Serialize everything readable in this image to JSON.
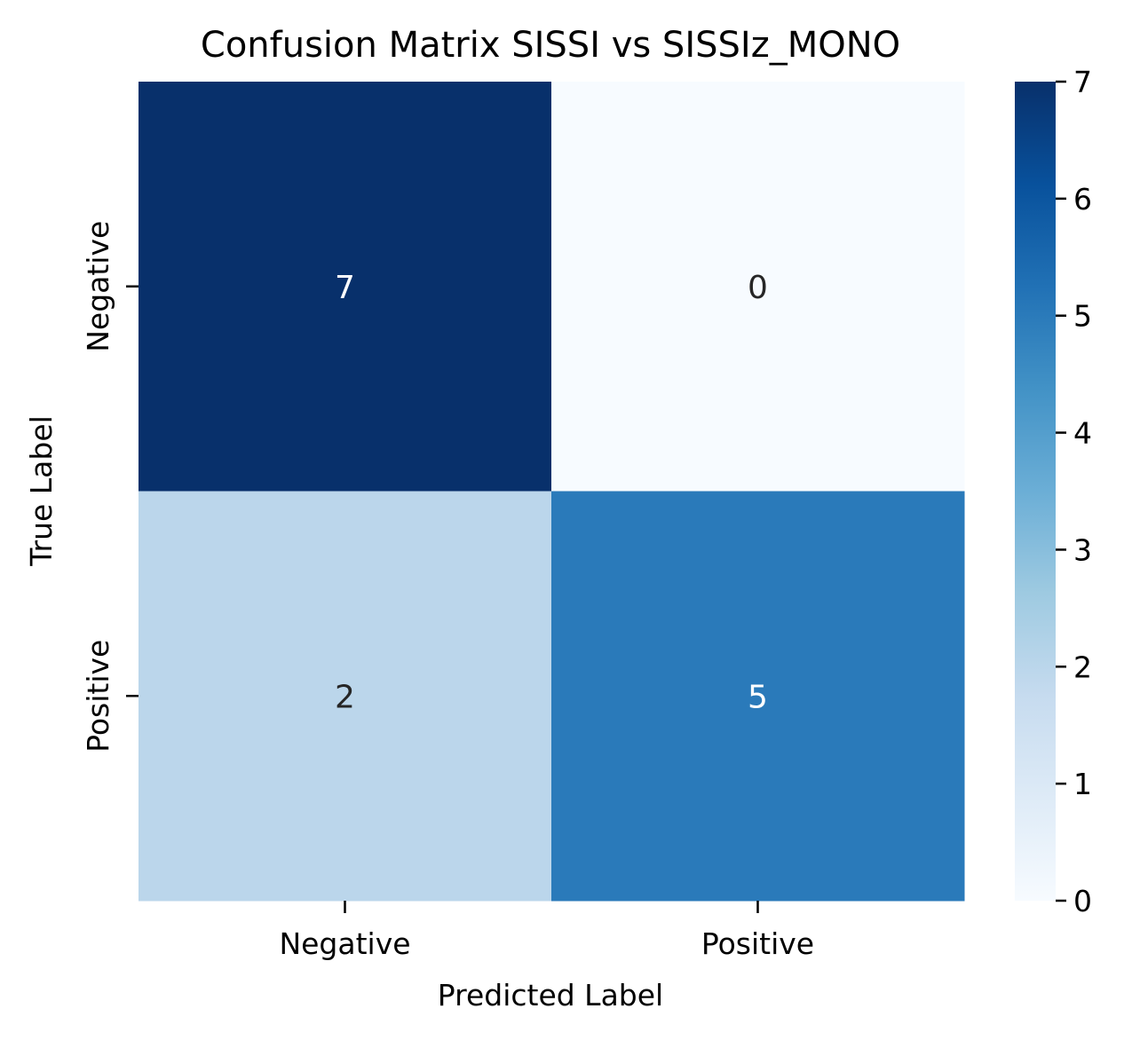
{
  "chart_data": {
    "type": "heatmap",
    "title": "Confusion Matrix SISSI vs SISSIz_MONO",
    "xlabel": "Predicted Label",
    "ylabel": "True Label",
    "x_categories": [
      "Negative",
      "Positive"
    ],
    "y_categories": [
      "Negative",
      "Positive"
    ],
    "values": [
      [
        7,
        0
      ],
      [
        2,
        5
      ]
    ],
    "colorbar": {
      "range": [
        0,
        7
      ],
      "ticks": [
        "0",
        "1",
        "2",
        "3",
        "4",
        "5",
        "6",
        "7"
      ],
      "colormap": "Blues",
      "color_stops": [
        "#f7fbff",
        "#deebf7",
        "#c6dbef",
        "#9ecae1",
        "#6baed6",
        "#4292c6",
        "#2171b5",
        "#08519c",
        "#08306b"
      ]
    },
    "grid": false
  }
}
